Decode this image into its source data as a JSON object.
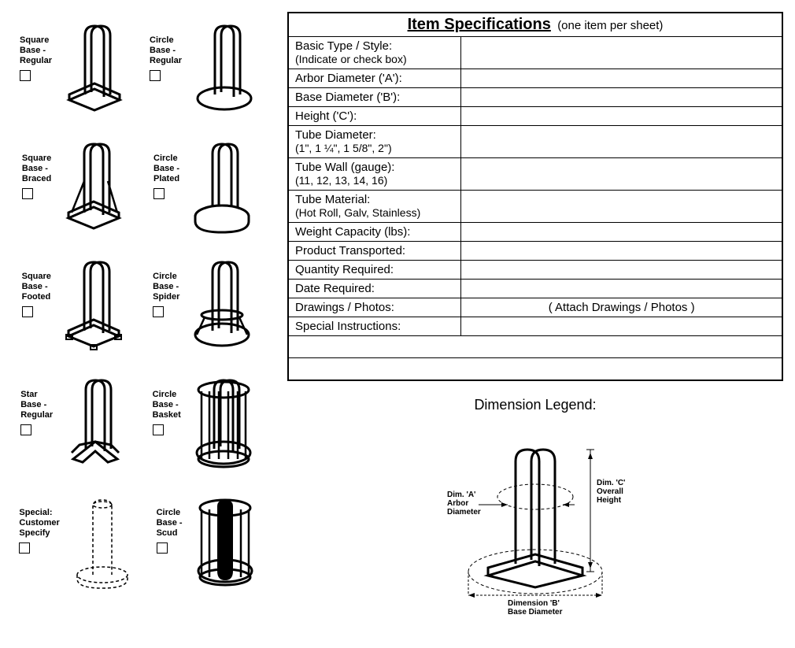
{
  "types": [
    {
      "label": "Square\nBase -\nRegular",
      "shape": "square-regular"
    },
    {
      "label": "Circle\nBase -\nRegular",
      "shape": "circle-regular"
    },
    {
      "label": "Square\nBase -\nBraced",
      "shape": "square-braced"
    },
    {
      "label": "Circle\nBase -\nPlated",
      "shape": "circle-plated"
    },
    {
      "label": "Square\nBase -\nFooted",
      "shape": "square-footed"
    },
    {
      "label": "Circle\nBase -\nSpider",
      "shape": "circle-spider"
    },
    {
      "label": "Star\nBase -\nRegular",
      "shape": "star-regular"
    },
    {
      "label": "Circle\nBase -\nBasket",
      "shape": "circle-basket"
    },
    {
      "label": "Special:\nCustomer\nSpecify",
      "shape": "special"
    },
    {
      "label": "Circle\nBase -\nScud",
      "shape": "circle-scud"
    }
  ],
  "spec": {
    "title": "Item Specifications",
    "subtitle": "(one item per sheet)",
    "rows": [
      {
        "label": "Basic Type / Style:",
        "sub": "(Indicate or check box)",
        "value": ""
      },
      {
        "label": "Arbor Diameter ('A'):",
        "value": ""
      },
      {
        "label": "Base Diameter ('B'):",
        "value": ""
      },
      {
        "label": "Height ('C'):",
        "value": ""
      },
      {
        "label": "Tube Diameter:",
        "sub": "(1\", 1 ¼\", 1 5/8\", 2\")",
        "value": ""
      },
      {
        "label": "Tube Wall (gauge):",
        "sub": "(11, 12, 13, 14, 16)",
        "value": ""
      },
      {
        "label": "Tube Material:",
        "sub": "(Hot Roll, Galv, Stainless)",
        "value": ""
      },
      {
        "label": "Weight Capacity (lbs):",
        "value": ""
      },
      {
        "label": "Product Transported:",
        "value": ""
      },
      {
        "label": "Quantity Required:",
        "value": ""
      },
      {
        "label": "Date Required:",
        "value": ""
      },
      {
        "label": "Drawings / Photos:",
        "value": "( Attach Drawings / Photos )",
        "attach": true
      },
      {
        "label": "Special Instructions:",
        "value": "",
        "fullrow_after": true
      }
    ]
  },
  "legend": {
    "title": "Dimension Legend:",
    "dimA": "Dim. 'A'\nArbor\nDiameter",
    "dimB": "Dimension 'B'\nBase Diameter",
    "dimC": "Dim. 'C'\nOverall\nHeight"
  },
  "colors": {
    "stroke": "#000000",
    "bg": "#ffffff",
    "dash": "#000000"
  }
}
